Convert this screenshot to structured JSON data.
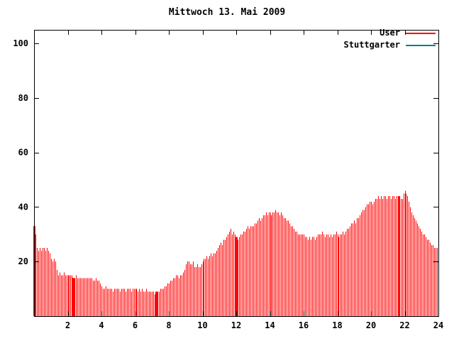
{
  "page": {
    "background": "#ffffff"
  },
  "chart_data": {
    "type": "bar",
    "style": "impulses",
    "title": "Mittwoch 13. Mai 2009",
    "xlabel": "",
    "ylabel": "",
    "x_axis": {
      "min": 0,
      "max": 24,
      "ticks": [
        2,
        4,
        6,
        8,
        10,
        12,
        14,
        16,
        18,
        20,
        22,
        24
      ]
    },
    "y_axis": {
      "min": 0,
      "max": 105,
      "ticks": [
        20,
        40,
        60,
        80,
        100
      ]
    },
    "grid": false,
    "legend_position": "top-right",
    "interval_minutes": 5,
    "series": [
      {
        "name": "User",
        "color": "#ff0000",
        "values": [
          33,
          30,
          25,
          24,
          25,
          24,
          25,
          25,
          24,
          25,
          24,
          23,
          21,
          20,
          21,
          20,
          17,
          15,
          16,
          15,
          15,
          16,
          15,
          15,
          15,
          15,
          15,
          15,
          14,
          14,
          15,
          14,
          14,
          14,
          14,
          14,
          14,
          14,
          14,
          14,
          14,
          14,
          13,
          13,
          14,
          13,
          13,
          12,
          11,
          10,
          10,
          11,
          10,
          10,
          10,
          10,
          9,
          10,
          10,
          10,
          10,
          9,
          10,
          10,
          10,
          9,
          10,
          10,
          10,
          9,
          10,
          10,
          10,
          10,
          9,
          10,
          9,
          10,
          9,
          9,
          10,
          9,
          9,
          9,
          9,
          9,
          8,
          9,
          9,
          9,
          10,
          10,
          10,
          11,
          11,
          12,
          12,
          13,
          13,
          14,
          14,
          15,
          15,
          14,
          15,
          15,
          16,
          17,
          19,
          20,
          20,
          19,
          19,
          20,
          18,
          18,
          19,
          18,
          18,
          19,
          20,
          21,
          21,
          22,
          21,
          22,
          23,
          22,
          23,
          23,
          24,
          25,
          26,
          27,
          26,
          28,
          28,
          29,
          30,
          31,
          32,
          30,
          31,
          30,
          29,
          28,
          29,
          30,
          30,
          31,
          31,
          32,
          33,
          32,
          33,
          33,
          33,
          34,
          34,
          35,
          36,
          35,
          36,
          37,
          37,
          38,
          37,
          38,
          38,
          37,
          38,
          38,
          39,
          38,
          38,
          37,
          38,
          37,
          36,
          36,
          35,
          35,
          34,
          33,
          33,
          32,
          31,
          31,
          30,
          30,
          30,
          30,
          30,
          29,
          29,
          28,
          29,
          28,
          29,
          29,
          28,
          29,
          30,
          30,
          30,
          31,
          30,
          29,
          30,
          30,
          29,
          30,
          29,
          30,
          30,
          31,
          30,
          29,
          30,
          30,
          31,
          30,
          31,
          32,
          32,
          33,
          34,
          34,
          35,
          34,
          36,
          36,
          37,
          38,
          39,
          39,
          40,
          41,
          41,
          42,
          42,
          41,
          42,
          43,
          43,
          44,
          43,
          44,
          43,
          44,
          44,
          43,
          44,
          44,
          43,
          44,
          44,
          43,
          44,
          44,
          44,
          43,
          43,
          45,
          46,
          45,
          44,
          42,
          40,
          38,
          37,
          36,
          35,
          34,
          33,
          32,
          31,
          30,
          30,
          29,
          28,
          28,
          27,
          26,
          26,
          25,
          25,
          25
        ]
      },
      {
        "name": "Stuttgarter",
        "color": "#008080",
        "values": []
      }
    ],
    "event_markers_hours": [
      0.0,
      2.3,
      7.25,
      12.0,
      21.65
    ]
  }
}
